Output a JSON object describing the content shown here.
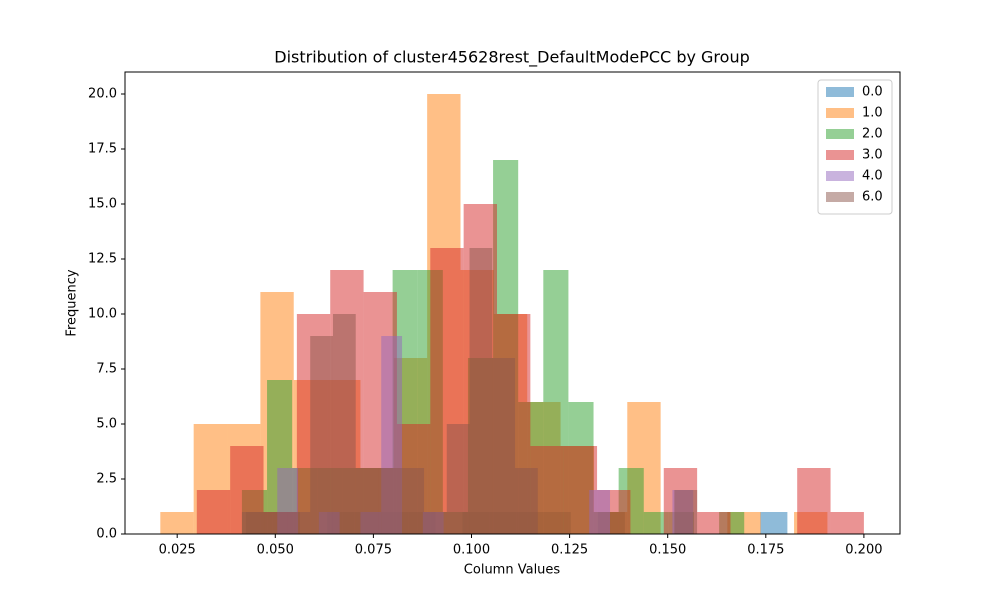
{
  "chart_data": {
    "type": "histogram",
    "title": "Distribution of cluster45628rest_DefaultModePCC by Group",
    "x_label": "Column Values",
    "y_label": "Frequency",
    "xlim": [
      0.0117,
      0.2092
    ],
    "ylim": [
      0,
      21
    ],
    "xticks": [
      {
        "value": 0.025,
        "label": "0.025"
      },
      {
        "value": 0.05,
        "label": "0.050"
      },
      {
        "value": 0.075,
        "label": "0.075"
      },
      {
        "value": 0.1,
        "label": "0.100"
      },
      {
        "value": 0.125,
        "label": "0.125"
      },
      {
        "value": 0.15,
        "label": "0.150"
      },
      {
        "value": 0.175,
        "label": "0.175"
      },
      {
        "value": 0.2,
        "label": "0.200"
      }
    ],
    "yticks": [
      {
        "value": 0,
        "label": "0.0"
      },
      {
        "value": 2.5,
        "label": "2.5"
      },
      {
        "value": 5,
        "label": "5.0"
      },
      {
        "value": 7.5,
        "label": "7.5"
      },
      {
        "value": 10,
        "label": "10.0"
      },
      {
        "value": 12.5,
        "label": "12.5"
      },
      {
        "value": 15,
        "label": "15.0"
      },
      {
        "value": 17.5,
        "label": "17.5"
      },
      {
        "value": 20,
        "label": "20.0"
      }
    ],
    "legend_position": "upper right",
    "opacity": 0.5,
    "series": [
      {
        "name": "0.0",
        "color": "#1f77b4",
        "bins": [
          0.0425,
          0.0494,
          0.0563,
          0.0632,
          0.0701,
          0.077,
          0.0839,
          0.0908,
          0.0977,
          0.1046,
          0.1115,
          0.1184,
          0.1253,
          0.1322,
          0.1391,
          0.146,
          0.1529,
          0.1598,
          0.1667,
          0.1736,
          0.1805
        ],
        "values": [
          1,
          1,
          0,
          1,
          1,
          1,
          1,
          0,
          1,
          1,
          1,
          1,
          0,
          1,
          0,
          0,
          0,
          0,
          0,
          1
        ]
      },
      {
        "name": "1.0",
        "color": "#ff7f0e",
        "bins": [
          0.0207,
          0.0292,
          0.0377,
          0.0462,
          0.0547,
          0.0632,
          0.0717,
          0.0802,
          0.0887,
          0.0972,
          0.1057,
          0.1142,
          0.1227,
          0.1312,
          0.1397,
          0.1482,
          0.1567,
          0.1652,
          0.1737,
          0.1822,
          0.1907
        ],
        "values": [
          1,
          5,
          5,
          11,
          7,
          7,
          3,
          8,
          20,
          12,
          10,
          6,
          4,
          1,
          6,
          0,
          0,
          1,
          0,
          1
        ]
      },
      {
        "name": "2.0",
        "color": "#2ca02c",
        "bins": [
          0.0415,
          0.0479,
          0.0543,
          0.0607,
          0.0671,
          0.0735,
          0.0799,
          0.0863,
          0.0927,
          0.0991,
          0.1055,
          0.1119,
          0.1183,
          0.1247,
          0.1311,
          0.1375,
          0.1439,
          0.1503,
          0.1567,
          0.1631,
          0.1695
        ],
        "values": [
          2,
          7,
          3,
          3,
          3,
          3,
          12,
          12,
          1,
          8,
          17,
          6,
          12,
          6,
          1,
          3,
          1,
          1,
          0,
          1
        ]
      },
      {
        "name": "3.0",
        "color": "#d62728",
        "bins": [
          0.03,
          0.0385,
          0.047,
          0.0555,
          0.064,
          0.0725,
          0.081,
          0.0895,
          0.098,
          0.1065,
          0.115,
          0.1235,
          0.132,
          0.1405,
          0.149,
          0.1575,
          0.166,
          0.1745,
          0.183,
          0.1915,
          0.2
        ],
        "values": [
          2,
          4,
          1,
          10,
          12,
          11,
          5,
          13,
          15,
          10,
          4,
          4,
          2,
          0,
          3,
          1,
          0,
          0,
          3,
          1
        ]
      },
      {
        "name": "4.0",
        "color": "#9467bd",
        "bins": [
          0.0505,
          0.0558,
          0.0611,
          0.0664,
          0.0717,
          0.077,
          0.0823,
          0.0876,
          0.0929,
          0.0982,
          0.1035,
          0.1088,
          0.1141,
          0.1194,
          0.1247,
          0.13,
          0.1353,
          0.1406,
          0.1459,
          0.1512,
          0.1565
        ],
        "values": [
          3,
          0,
          1,
          0,
          1,
          9,
          0,
          1,
          0,
          0,
          0,
          0,
          0,
          0,
          0,
          2,
          0,
          0,
          0,
          2
        ]
      },
      {
        "name": "6.0",
        "color": "#8c564b",
        "bins": [
          0.0415,
          0.0473,
          0.0531,
          0.0589,
          0.0647,
          0.0705,
          0.0763,
          0.0821,
          0.0879,
          0.0937,
          0.0995,
          0.1053,
          0.1111,
          0.1169,
          0.1227,
          0.1285,
          0.1343,
          0.1401,
          0.1459,
          0.1517,
          0.1575
        ],
        "values": [
          1,
          1,
          1,
          9,
          10,
          3,
          3,
          3,
          1,
          5,
          13,
          8,
          3,
          0,
          0,
          0,
          0,
          0,
          0,
          2
        ]
      }
    ]
  }
}
